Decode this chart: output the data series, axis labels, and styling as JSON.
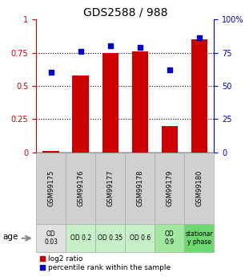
{
  "title": "GDS2588 / 988",
  "samples": [
    "GSM99175",
    "GSM99176",
    "GSM99177",
    "GSM99178",
    "GSM99179",
    "GSM99180"
  ],
  "log2_ratio": [
    0.01,
    0.58,
    0.75,
    0.76,
    0.2,
    0.85
  ],
  "percentile_rank": [
    0.6,
    0.76,
    0.8,
    0.79,
    0.62,
    0.86
  ],
  "bar_color": "#cc0000",
  "dot_color": "#0000cc",
  "ylim": [
    0,
    1
  ],
  "yticks": [
    0,
    0.25,
    0.5,
    0.75,
    1.0
  ],
  "ytick_labels_left": [
    "0",
    "0.25",
    "0.5",
    "0.75",
    "1"
  ],
  "ytick_labels_right": [
    "0",
    "25",
    "50",
    "75",
    "100%"
  ],
  "left_axis_color": "#cc0000",
  "right_axis_color": "#0000cc",
  "age_labels": [
    "OD\n0.03",
    "OD 0.2",
    "OD 0.35",
    "OD 0.6",
    "OD\n0.9",
    "stationar\ny phase"
  ],
  "age_bg_colors": [
    "#e0e0e0",
    "#c8f0c8",
    "#c8f0c8",
    "#c8f0c8",
    "#a0e8a0",
    "#70d870"
  ],
  "sample_bg_color": "#d0d0d0",
  "legend_red_label": "log2 ratio",
  "legend_blue_label": "percentile rank within the sample"
}
